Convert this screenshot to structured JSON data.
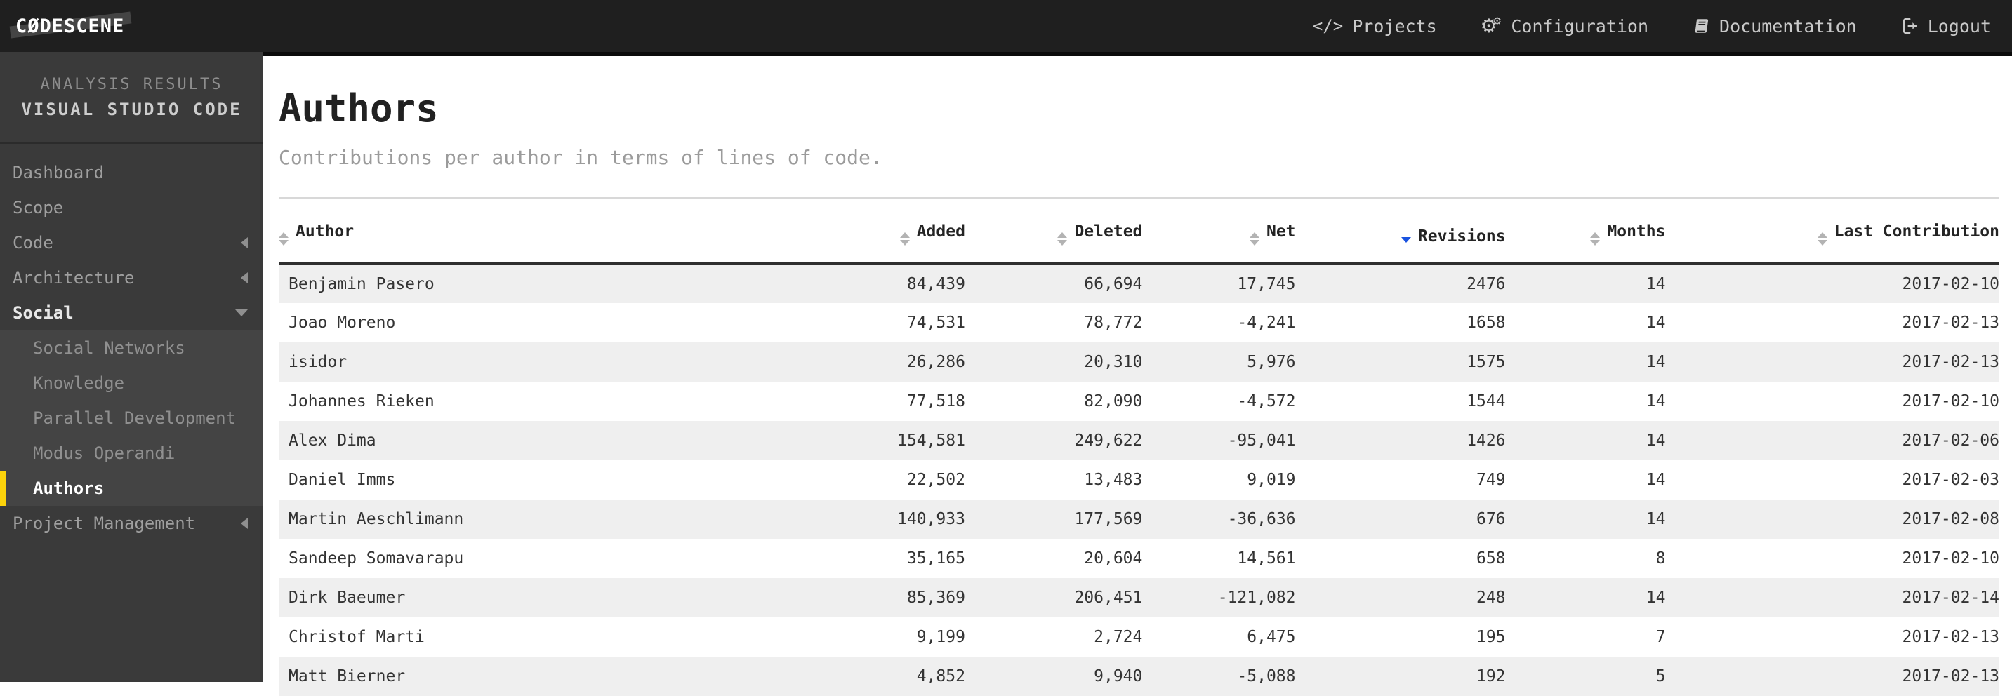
{
  "topbar": {
    "logo": "CØDESCENE",
    "nav": [
      {
        "id": "projects",
        "icon": "code-icon",
        "label": "Projects"
      },
      {
        "id": "configuration",
        "icon": "gears-icon",
        "label": "Configuration"
      },
      {
        "id": "documentation",
        "icon": "book-icon",
        "label": "Documentation"
      },
      {
        "id": "logout",
        "icon": "logout-icon",
        "label": "Logout"
      }
    ]
  },
  "sidebar": {
    "eyebrow": "ANALYSIS RESULTS",
    "project": "VISUAL STUDIO CODE",
    "items": [
      {
        "id": "dashboard",
        "label": "Dashboard"
      },
      {
        "id": "scope",
        "label": "Scope"
      },
      {
        "id": "code",
        "label": "Code",
        "chevron": "left"
      },
      {
        "id": "architecture",
        "label": "Architecture",
        "chevron": "left"
      },
      {
        "id": "social",
        "label": "Social",
        "chevron": "down",
        "expanded": true,
        "children": [
          {
            "id": "social-networks",
            "label": "Social Networks"
          },
          {
            "id": "knowledge",
            "label": "Knowledge"
          },
          {
            "id": "parallel-development",
            "label": "Parallel Development"
          },
          {
            "id": "modus-operandi",
            "label": "Modus Operandi"
          },
          {
            "id": "authors",
            "label": "Authors",
            "active": true
          }
        ]
      },
      {
        "id": "project-management",
        "label": "Project Management",
        "chevron": "left"
      }
    ]
  },
  "main": {
    "title": "Authors",
    "subtitle": "Contributions per author in terms of lines of code.",
    "table": {
      "columns": [
        {
          "id": "author",
          "label": "Author",
          "align": "left",
          "sort": "both",
          "width": "28.6%"
        },
        {
          "id": "added",
          "label": "Added",
          "align": "right",
          "sort": "both",
          "width": "11.3%"
        },
        {
          "id": "deleted",
          "label": "Deleted",
          "align": "right",
          "sort": "both",
          "width": "10.3%"
        },
        {
          "id": "net",
          "label": "Net",
          "align": "right",
          "sort": "both",
          "width": "8.9%"
        },
        {
          "id": "revisions",
          "label": "Revisions",
          "align": "right",
          "sort": "desc",
          "width": "12.2%"
        },
        {
          "id": "months",
          "label": "Months",
          "align": "right",
          "sort": "both",
          "width": "9.3%"
        },
        {
          "id": "last-contribution",
          "label": "Last Contribution",
          "align": "right",
          "sort": "both",
          "width": "19.4%"
        }
      ],
      "rows": [
        [
          "Benjamin Pasero",
          "84,439",
          "66,694",
          "17,745",
          "2476",
          "14",
          "2017-02-10"
        ],
        [
          "Joao Moreno",
          "74,531",
          "78,772",
          "-4,241",
          "1658",
          "14",
          "2017-02-13"
        ],
        [
          "isidor",
          "26,286",
          "20,310",
          "5,976",
          "1575",
          "14",
          "2017-02-13"
        ],
        [
          "Johannes Rieken",
          "77,518",
          "82,090",
          "-4,572",
          "1544",
          "14",
          "2017-02-10"
        ],
        [
          "Alex Dima",
          "154,581",
          "249,622",
          "-95,041",
          "1426",
          "14",
          "2017-02-06"
        ],
        [
          "Daniel Imms",
          "22,502",
          "13,483",
          "9,019",
          "749",
          "14",
          "2017-02-03"
        ],
        [
          "Martin Aeschlimann",
          "140,933",
          "177,569",
          "-36,636",
          "676",
          "14",
          "2017-02-08"
        ],
        [
          "Sandeep Somavarapu",
          "35,165",
          "20,604",
          "14,561",
          "658",
          "8",
          "2017-02-10"
        ],
        [
          "Dirk Baeumer",
          "85,369",
          "206,451",
          "-121,082",
          "248",
          "14",
          "2017-02-14"
        ],
        [
          "Christof Marti",
          "9,199",
          "2,724",
          "6,475",
          "195",
          "7",
          "2017-02-13"
        ],
        [
          "Matt Bierner",
          "4,852",
          "9,940",
          "-5,088",
          "192",
          "5",
          "2017-02-13"
        ]
      ]
    }
  },
  "colors": {
    "accent_yellow": "#fcd30b",
    "sort_active_blue": "#1a53e0",
    "row_stripe": "#efefef",
    "topbar_bg": "#1f1f1f",
    "sidebar_bg": "#3a3a3a",
    "submenu_bg": "#444444"
  }
}
